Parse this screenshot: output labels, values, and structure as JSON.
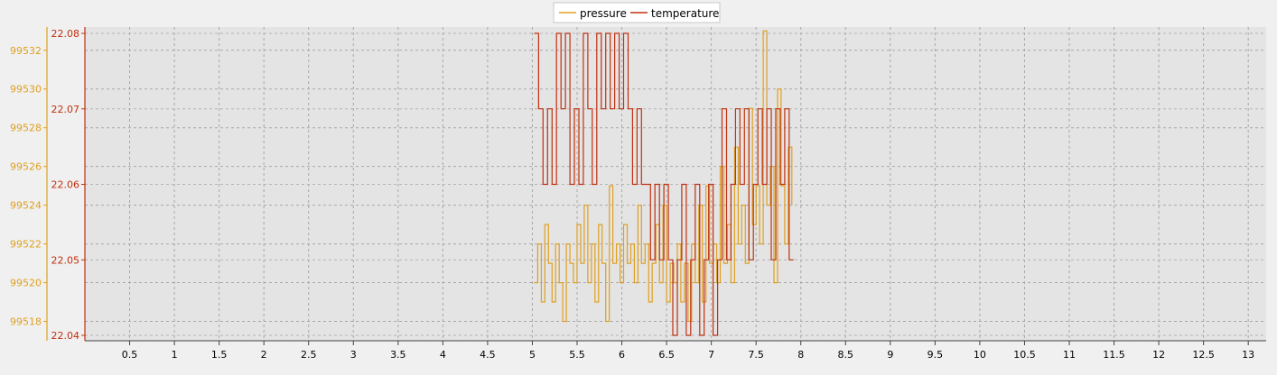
{
  "chart_data": {
    "type": "line",
    "step": true,
    "grid": true,
    "legend": {
      "position": "top-center",
      "entries": [
        "pressure",
        "temperature"
      ]
    },
    "x": {
      "range": [
        0,
        13.2
      ],
      "ticks": [
        0.5,
        1,
        1.5,
        2,
        2.5,
        3,
        3.5,
        4,
        4.5,
        5,
        5.5,
        6,
        6.5,
        7,
        7.5,
        8,
        8.5,
        9,
        9.5,
        10,
        10.5,
        11,
        11.5,
        12,
        12.5,
        13
      ],
      "tick_labels": [
        "0.5",
        "1",
        "1.5",
        "2",
        "2.5",
        "3",
        "3.5",
        "4",
        "4.5",
        "5",
        "5.5",
        "6",
        "6.5",
        "7",
        "7.5",
        "8",
        "8.5",
        "9",
        "9.5",
        "10",
        "10.5",
        "11",
        "11.5",
        "12",
        "12.5",
        "13"
      ]
    },
    "y_left": {
      "range": [
        99517,
        99533.2
      ],
      "ticks": [
        99518,
        99520,
        99522,
        99524,
        99526,
        99528,
        99530,
        99532
      ],
      "tick_labels": [
        "99518",
        "99520",
        "99522",
        "99524",
        "99526",
        "99528",
        "99530",
        "99532"
      ],
      "color": "#e0a020"
    },
    "y_right": {
      "range": [
        22.04,
        22.08
      ],
      "ticks": [
        22.04,
        22.05,
        22.06,
        22.07,
        22.08
      ],
      "tick_labels": [
        "22.04",
        "22.05",
        "22.06",
        "22.07",
        "22.08"
      ],
      "color": "#c03010"
    },
    "series": [
      {
        "name": "pressure",
        "axis": "left",
        "color": "#e0a020",
        "x": [
          5.02,
          5.06,
          5.1,
          5.14,
          5.18,
          5.22,
          5.26,
          5.3,
          5.34,
          5.38,
          5.42,
          5.46,
          5.5,
          5.54,
          5.58,
          5.62,
          5.66,
          5.7,
          5.74,
          5.78,
          5.82,
          5.86,
          5.9,
          5.94,
          5.98,
          6.02,
          6.06,
          6.1,
          6.14,
          6.18,
          6.22,
          6.26,
          6.3,
          6.34,
          6.38,
          6.42,
          6.46,
          6.5,
          6.54,
          6.58,
          6.62,
          6.66,
          6.7,
          6.74,
          6.78,
          6.82,
          6.86,
          6.9,
          6.94,
          6.98,
          7.02,
          7.06,
          7.1,
          7.14,
          7.18,
          7.22,
          7.26,
          7.3,
          7.34,
          7.38,
          7.42,
          7.46,
          7.5,
          7.54,
          7.58,
          7.62,
          7.66,
          7.7,
          7.74,
          7.78,
          7.82,
          7.86,
          7.9
        ],
        "values": [
          99520,
          99522,
          99519,
          99523,
          99521,
          99519,
          99522,
          99520,
          99518,
          99522,
          99521,
          99520,
          99523,
          99521,
          99524,
          99520,
          99522,
          99519,
          99523,
          99521,
          99518,
          99525,
          99521,
          99522,
          99520,
          99523,
          99521,
          99522,
          99520,
          99524,
          99521,
          99522,
          99519,
          99521,
          99523,
          99520,
          99524,
          99519,
          99521,
          99520,
          99522,
          99519,
          99521,
          99518,
          99522,
          99520,
          99524,
          99519,
          99525,
          99521,
          99522,
          99520,
          99526,
          99521,
          99523,
          99520,
          99527,
          99522,
          99524,
          99521,
          99529,
          99523,
          99525,
          99522,
          99533,
          99524,
          99526,
          99520,
          99530,
          99525,
          99522,
          99527,
          99524
        ]
      },
      {
        "name": "temperature",
        "axis": "right",
        "color": "#c03010",
        "x": [
          5.02,
          5.07,
          5.12,
          5.17,
          5.22,
          5.27,
          5.32,
          5.37,
          5.42,
          5.47,
          5.52,
          5.57,
          5.62,
          5.67,
          5.72,
          5.77,
          5.82,
          5.87,
          5.92,
          5.97,
          6.02,
          6.07,
          6.12,
          6.17,
          6.22,
          6.27,
          6.32,
          6.37,
          6.42,
          6.47,
          6.52,
          6.57,
          6.62,
          6.67,
          6.72,
          6.77,
          6.82,
          6.87,
          6.92,
          6.97,
          7.02,
          7.07,
          7.12,
          7.17,
          7.22,
          7.27,
          7.32,
          7.37,
          7.42,
          7.47,
          7.52,
          7.57,
          7.62,
          7.67,
          7.72,
          7.77,
          7.82,
          7.87,
          7.92
        ],
        "values": [
          22.08,
          22.07,
          22.06,
          22.07,
          22.06,
          22.08,
          22.07,
          22.08,
          22.06,
          22.07,
          22.06,
          22.08,
          22.07,
          22.06,
          22.08,
          22.07,
          22.08,
          22.07,
          22.08,
          22.07,
          22.08,
          22.07,
          22.06,
          22.07,
          22.06,
          22.06,
          22.05,
          22.06,
          22.05,
          22.06,
          22.05,
          22.04,
          22.05,
          22.06,
          22.04,
          22.05,
          22.06,
          22.04,
          22.05,
          22.06,
          22.04,
          22.05,
          22.07,
          22.05,
          22.06,
          22.07,
          22.06,
          22.07,
          22.05,
          22.06,
          22.07,
          22.06,
          22.07,
          22.05,
          22.07,
          22.06,
          22.07,
          22.05,
          22.05
        ]
      }
    ]
  }
}
